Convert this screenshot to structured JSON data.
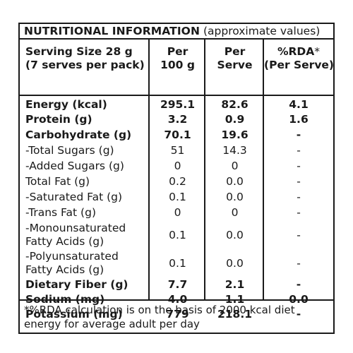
{
  "panel": {
    "title_main": "NUTRITIONAL INFORMATION",
    "title_sub": " (approximate values)"
  },
  "header": {
    "col0_line1": "Serving Size 28 g",
    "col0_line2": "(7 serves per pack)",
    "col1_line1": "Per",
    "col1_line2": "100 g",
    "col2_line1": "Per",
    "col2_line2": "Serve",
    "col3_line1": "%RDA",
    "col3_star": "*",
    "col3_line2": "(Per Serve)"
  },
  "rows": [
    {
      "label": "Energy (kcal)",
      "per100": "295.1",
      "perServe": "82.6",
      "rda": "4.1",
      "style": "bold"
    },
    {
      "label": "Protein (g)",
      "per100": "3.2",
      "perServe": "0.9",
      "rda": "1.6",
      "style": "bold"
    },
    {
      "label": "Carbohydrate (g)",
      "per100": "70.1",
      "perServe": "19.6",
      "rda": "-",
      "style": "bold"
    },
    {
      "label": "-Total Sugars (g)",
      "per100": "51",
      "perServe": "14.3",
      "rda": "-",
      "style": "regular"
    },
    {
      "label": "-Added Sugars (g)",
      "per100": "0",
      "perServe": "0",
      "rda": "-",
      "style": "regular"
    },
    {
      "label": "Total Fat (g)",
      "per100": "0.2",
      "perServe": "0.0",
      "rda": "-",
      "style": "regular"
    },
    {
      "label": "-Saturated Fat (g)",
      "per100": "0.1",
      "perServe": "0.0",
      "rda": "-",
      "style": "regular"
    },
    {
      "label": "-Trans Fat (g)",
      "per100": "0",
      "perServe": "0",
      "rda": "-",
      "style": "regular"
    },
    {
      "label": "-Monounsaturated\nFatty Acids (g)",
      "per100": "0.1",
      "perServe": "0.0",
      "rda": "-",
      "style": "regular"
    },
    {
      "label": "-Polyunsaturated\nFatty Acids (g)",
      "per100": "0.1",
      "perServe": "0.0",
      "rda": "-",
      "style": "regular"
    },
    {
      "label": "Dietary Fiber (g)",
      "per100": "7.7",
      "perServe": "2.1",
      "rda": "-",
      "style": "bold"
    },
    {
      "label": "Sodium (mg)",
      "per100": "4.0",
      "perServe": "1.1",
      "rda": "0.0",
      "style": "bold"
    },
    {
      "label": "Potassium (mg)",
      "per100": "779",
      "perServe": "218.1",
      "rda": "-",
      "style": "bold"
    }
  ],
  "footer": {
    "note": "*%RDA calculation is on the basis of 2000 kcal diet energy for average adult per day"
  }
}
